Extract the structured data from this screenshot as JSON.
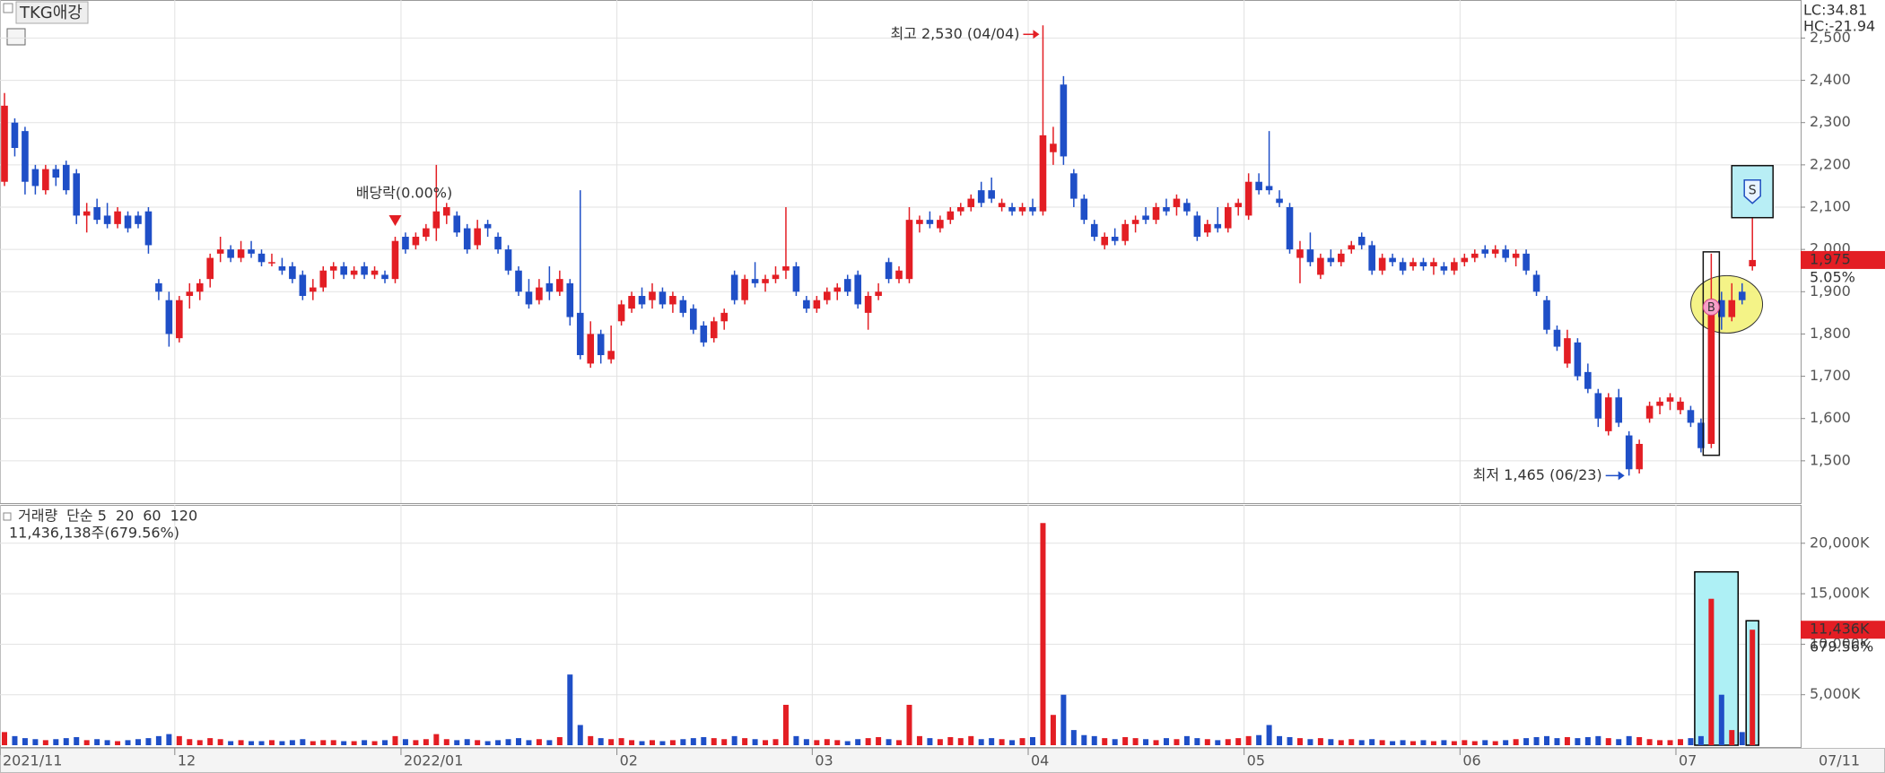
{
  "chart_data": [
    {
      "type": "candlestick",
      "title": "TKG애강",
      "up_color": "#e31e24",
      "down_color": "#1f4fc7",
      "ylim": [
        1400,
        2590
      ],
      "yticks": [
        {
          "value": 1500,
          "label": "1,500"
        },
        {
          "value": 1600,
          "label": "1,600"
        },
        {
          "value": 1700,
          "label": "1,700"
        },
        {
          "value": 1800,
          "label": "1,800"
        },
        {
          "value": 1900,
          "label": "1,900"
        },
        {
          "value": 2000,
          "label": "2,000"
        },
        {
          "value": 2100,
          "label": "2,100"
        },
        {
          "value": 2200,
          "label": "2,200"
        },
        {
          "value": 2300,
          "label": "2,300"
        },
        {
          "value": 2400,
          "label": "2,400"
        },
        {
          "value": 2500,
          "label": "2,500"
        }
      ],
      "xticks": [
        {
          "value": 0,
          "label": "2021/11"
        },
        {
          "value": 17,
          "label": "12"
        },
        {
          "value": 39,
          "label": "2022/01"
        },
        {
          "value": 60,
          "label": "02"
        },
        {
          "value": 79,
          "label": "03"
        },
        {
          "value": 100,
          "label": "04"
        },
        {
          "value": 121,
          "label": "05"
        },
        {
          "value": 142,
          "label": "06"
        },
        {
          "value": 163,
          "label": "07"
        }
      ],
      "last_date": "07/11",
      "grid": true,
      "lc": "LC:34.81",
      "hc": "HC:-21.94",
      "last_price_label": "1,975",
      "change_label": "5.05%",
      "annotations": {
        "high": "최고 2,530 (04/04)",
        "low": "최저 1,465 (06/23)",
        "ex_dividend": "배당락(0.00%)"
      },
      "signals": {
        "buy": "B",
        "sell": "S"
      },
      "ohlc": [
        [
          2160,
          2370,
          2150,
          2340
        ],
        [
          2300,
          2310,
          2220,
          2240
        ],
        [
          2280,
          2290,
          2130,
          2160
        ],
        [
          2190,
          2200,
          2130,
          2150
        ],
        [
          2140,
          2200,
          2130,
          2190
        ],
        [
          2190,
          2200,
          2150,
          2170
        ],
        [
          2200,
          2210,
          2130,
          2140
        ],
        [
          2180,
          2190,
          2060,
          2080
        ],
        [
          2080,
          2110,
          2040,
          2090
        ],
        [
          2100,
          2120,
          2060,
          2070
        ],
        [
          2080,
          2110,
          2050,
          2060
        ],
        [
          2060,
          2100,
          2050,
          2090
        ],
        [
          2080,
          2090,
          2040,
          2050
        ],
        [
          2080,
          2090,
          2050,
          2060
        ],
        [
          2090,
          2100,
          1990,
          2010
        ],
        [
          1920,
          1930,
          1880,
          1900
        ],
        [
          1880,
          1900,
          1770,
          1800
        ],
        [
          1790,
          1890,
          1780,
          1880
        ],
        [
          1890,
          1920,
          1860,
          1900
        ],
        [
          1900,
          1930,
          1880,
          1920
        ],
        [
          1930,
          1990,
          1910,
          1980
        ],
        [
          1990,
          2030,
          1970,
          2000
        ],
        [
          2000,
          2010,
          1970,
          1980
        ],
        [
          1980,
          2020,
          1970,
          2000
        ],
        [
          2000,
          2020,
          1980,
          1990
        ],
        [
          1990,
          2000,
          1960,
          1970
        ],
        [
          1970,
          1990,
          1960,
          1970
        ],
        [
          1960,
          1980,
          1940,
          1950
        ],
        [
          1960,
          1970,
          1920,
          1930
        ],
        [
          1940,
          1950,
          1880,
          1890
        ],
        [
          1900,
          1930,
          1880,
          1910
        ],
        [
          1910,
          1960,
          1900,
          1950
        ],
        [
          1950,
          1970,
          1930,
          1960
        ],
        [
          1960,
          1970,
          1930,
          1940
        ],
        [
          1940,
          1960,
          1930,
          1950
        ],
        [
          1960,
          1970,
          1930,
          1940
        ],
        [
          1940,
          1960,
          1930,
          1950
        ],
        [
          1940,
          1950,
          1920,
          1930
        ],
        [
          1930,
          2030,
          1920,
          2020
        ],
        [
          2030,
          2040,
          1990,
          2000
        ],
        [
          2010,
          2040,
          2000,
          2030
        ],
        [
          2030,
          2060,
          2020,
          2050
        ],
        [
          2050,
          2200,
          2020,
          2090
        ],
        [
          2080,
          2110,
          2060,
          2100
        ],
        [
          2080,
          2090,
          2030,
          2040
        ],
        [
          2050,
          2060,
          1990,
          2000
        ],
        [
          2010,
          2070,
          2000,
          2050
        ],
        [
          2060,
          2070,
          2030,
          2050
        ],
        [
          2030,
          2040,
          1990,
          2000
        ],
        [
          2000,
          2010,
          1940,
          1950
        ],
        [
          1950,
          1960,
          1890,
          1900
        ],
        [
          1900,
          1930,
          1860,
          1870
        ],
        [
          1880,
          1930,
          1870,
          1910
        ],
        [
          1920,
          1960,
          1880,
          1900
        ],
        [
          1900,
          1950,
          1890,
          1930
        ],
        [
          1920,
          1930,
          1820,
          1840
        ],
        [
          1850,
          2140,
          1740,
          1750
        ],
        [
          1730,
          1830,
          1720,
          1800
        ],
        [
          1800,
          1810,
          1730,
          1750
        ],
        [
          1740,
          1820,
          1730,
          1760
        ],
        [
          1830,
          1880,
          1820,
          1870
        ],
        [
          1860,
          1900,
          1850,
          1890
        ],
        [
          1890,
          1910,
          1860,
          1870
        ],
        [
          1880,
          1920,
          1860,
          1900
        ],
        [
          1900,
          1910,
          1860,
          1870
        ],
        [
          1870,
          1900,
          1850,
          1890
        ],
        [
          1880,
          1890,
          1840,
          1850
        ],
        [
          1860,
          1870,
          1800,
          1810
        ],
        [
          1820,
          1830,
          1770,
          1780
        ],
        [
          1790,
          1840,
          1780,
          1830
        ],
        [
          1830,
          1860,
          1810,
          1850
        ],
        [
          1940,
          1950,
          1870,
          1880
        ],
        [
          1880,
          1940,
          1870,
          1930
        ],
        [
          1930,
          1970,
          1910,
          1920
        ],
        [
          1920,
          1940,
          1900,
          1930
        ],
        [
          1930,
          1960,
          1920,
          1940
        ],
        [
          1950,
          2100,
          1930,
          1960
        ],
        [
          1960,
          1970,
          1890,
          1900
        ],
        [
          1880,
          1890,
          1850,
          1860
        ],
        [
          1860,
          1890,
          1850,
          1880
        ],
        [
          1880,
          1910,
          1870,
          1900
        ],
        [
          1900,
          1920,
          1880,
          1910
        ],
        [
          1930,
          1940,
          1890,
          1900
        ],
        [
          1940,
          1950,
          1860,
          1870
        ],
        [
          1850,
          1900,
          1810,
          1890
        ],
        [
          1890,
          1920,
          1880,
          1900
        ],
        [
          1970,
          1980,
          1920,
          1930
        ],
        [
          1930,
          1960,
          1920,
          1950
        ],
        [
          1930,
          2100,
          1920,
          2070
        ],
        [
          2060,
          2080,
          2040,
          2070
        ],
        [
          2070,
          2090,
          2050,
          2060
        ],
        [
          2050,
          2080,
          2040,
          2070
        ],
        [
          2070,
          2100,
          2060,
          2090
        ],
        [
          2090,
          2110,
          2080,
          2100
        ],
        [
          2100,
          2130,
          2090,
          2120
        ],
        [
          2140,
          2160,
          2100,
          2110
        ],
        [
          2140,
          2170,
          2110,
          2120
        ],
        [
          2100,
          2120,
          2090,
          2110
        ],
        [
          2100,
          2110,
          2080,
          2090
        ],
        [
          2090,
          2110,
          2080,
          2100
        ],
        [
          2100,
          2120,
          2080,
          2090
        ],
        [
          2090,
          2530,
          2080,
          2270
        ],
        [
          2230,
          2290,
          2200,
          2250
        ],
        [
          2390,
          2410,
          2200,
          2220
        ],
        [
          2180,
          2190,
          2100,
          2120
        ],
        [
          2120,
          2130,
          2060,
          2070
        ],
        [
          2060,
          2070,
          2020,
          2030
        ],
        [
          2010,
          2040,
          2000,
          2030
        ],
        [
          2030,
          2050,
          2010,
          2020
        ],
        [
          2020,
          2070,
          2010,
          2060
        ],
        [
          2060,
          2080,
          2040,
          2070
        ],
        [
          2080,
          2100,
          2060,
          2070
        ],
        [
          2070,
          2110,
          2060,
          2100
        ],
        [
          2100,
          2120,
          2080,
          2090
        ],
        [
          2100,
          2130,
          2080,
          2120
        ],
        [
          2110,
          2120,
          2080,
          2090
        ],
        [
          2080,
          2090,
          2020,
          2030
        ],
        [
          2040,
          2070,
          2030,
          2060
        ],
        [
          2060,
          2100,
          2040,
          2050
        ],
        [
          2050,
          2110,
          2040,
          2100
        ],
        [
          2100,
          2120,
          2080,
          2110
        ],
        [
          2080,
          2180,
          2070,
          2160
        ],
        [
          2160,
          2180,
          2130,
          2140
        ],
        [
          2150,
          2280,
          2130,
          2140
        ],
        [
          2120,
          2140,
          2100,
          2110
        ],
        [
          2100,
          2110,
          1990,
          2000
        ],
        [
          1980,
          2020,
          1920,
          2000
        ],
        [
          2000,
          2040,
          1960,
          1970
        ],
        [
          1940,
          1990,
          1930,
          1980
        ],
        [
          1980,
          2000,
          1960,
          1970
        ],
        [
          1970,
          2000,
          1960,
          1990
        ],
        [
          2000,
          2020,
          1990,
          2010
        ],
        [
          2030,
          2040,
          2000,
          2010
        ],
        [
          2010,
          2020,
          1940,
          1950
        ],
        [
          1950,
          1990,
          1940,
          1980
        ],
        [
          1980,
          1990,
          1960,
          1970
        ],
        [
          1970,
          1980,
          1940,
          1950
        ],
        [
          1960,
          1980,
          1950,
          1970
        ],
        [
          1970,
          1980,
          1950,
          1960
        ],
        [
          1960,
          1980,
          1940,
          1970
        ],
        [
          1960,
          1970,
          1940,
          1950
        ],
        [
          1950,
          1980,
          1940,
          1970
        ],
        [
          1970,
          1990,
          1960,
          1980
        ],
        [
          1980,
          2000,
          1970,
          1990
        ],
        [
          2000,
          2010,
          1980,
          1990
        ],
        [
          1990,
          2010,
          1980,
          2000
        ],
        [
          2000,
          2010,
          1970,
          1980
        ],
        [
          1980,
          2000,
          1960,
          1990
        ],
        [
          1990,
          2000,
          1940,
          1950
        ],
        [
          1940,
          1950,
          1890,
          1900
        ],
        [
          1880,
          1890,
          1800,
          1810
        ],
        [
          1810,
          1820,
          1760,
          1770
        ],
        [
          1730,
          1810,
          1720,
          1790
        ],
        [
          1780,
          1790,
          1690,
          1700
        ],
        [
          1710,
          1730,
          1660,
          1670
        ],
        [
          1660,
          1670,
          1580,
          1600
        ],
        [
          1570,
          1660,
          1560,
          1650
        ],
        [
          1650,
          1670,
          1580,
          1590
        ],
        [
          1560,
          1570,
          1465,
          1480
        ],
        [
          1480,
          1550,
          1470,
          1540
        ],
        [
          1600,
          1640,
          1590,
          1630
        ],
        [
          1630,
          1650,
          1610,
          1640
        ],
        [
          1640,
          1660,
          1620,
          1650
        ],
        [
          1620,
          1650,
          1610,
          1640
        ],
        [
          1620,
          1630,
          1580,
          1590
        ],
        [
          1590,
          1600,
          1520,
          1530
        ],
        [
          1540,
          1990,
          1530,
          1870
        ],
        [
          1880,
          1900,
          1810,
          1840
        ],
        [
          1840,
          1920,
          1830,
          1880
        ],
        [
          1900,
          1920,
          1870,
          1880
        ],
        [
          1960,
          2160,
          1950,
          1975
        ]
      ]
    },
    {
      "type": "bar",
      "ylim": [
        0,
        23800
      ],
      "yticks": [
        {
          "value": 5000,
          "label": "5,000K"
        },
        {
          "value": 10000,
          "label": "10,000K"
        },
        {
          "value": 15000,
          "label": "15,000K"
        },
        {
          "value": 20000,
          "label": "20,000K"
        }
      ],
      "legend": [
        {
          "name": "거래량",
          "color": "#1a9a9a"
        },
        {
          "name": "단순 5",
          "color": "#e020c0"
        },
        {
          "name": "20",
          "color": "#e8a020"
        },
        {
          "name": "60",
          "color": "#30a030"
        },
        {
          "name": "120",
          "color": "#888888"
        }
      ],
      "info": "11,436,138주(679.56%)",
      "last_label": "11,436K",
      "last_change": "679.56%",
      "values": [
        1300,
        900,
        700,
        600,
        500,
        600,
        700,
        800,
        500,
        600,
        500,
        400,
        500,
        600,
        700,
        900,
        1100,
        900,
        600,
        500,
        700,
        600,
        400,
        500,
        400,
        400,
        500,
        400,
        500,
        600,
        400,
        500,
        500,
        400,
        400,
        500,
        400,
        500,
        900,
        600,
        500,
        600,
        1100,
        600,
        500,
        600,
        500,
        400,
        500,
        600,
        700,
        500,
        600,
        500,
        800,
        7000,
        2000,
        900,
        700,
        600,
        700,
        500,
        400,
        500,
        400,
        500,
        600,
        700,
        800,
        700,
        600,
        900,
        700,
        600,
        500,
        600,
        4000,
        900,
        600,
        500,
        600,
        500,
        400,
        600,
        700,
        800,
        600,
        500,
        4000,
        900,
        700,
        600,
        800,
        700,
        900,
        600,
        700,
        600,
        500,
        700,
        800,
        22000,
        3000,
        5000,
        1500,
        1000,
        900,
        700,
        600,
        800,
        700,
        600,
        500,
        700,
        600,
        900,
        700,
        600,
        500,
        600,
        700,
        900,
        1000,
        2000,
        900,
        800,
        700,
        600,
        700,
        600,
        500,
        600,
        500,
        600,
        500,
        400,
        500,
        400,
        500,
        400,
        500,
        400,
        500,
        400,
        500,
        400,
        500,
        600,
        700,
        800,
        900,
        700,
        800,
        700,
        800,
        900,
        700,
        600,
        900,
        800,
        600,
        500,
        500,
        600,
        700,
        900,
        14500,
        5000,
        1500,
        1300,
        11436
      ]
    }
  ]
}
